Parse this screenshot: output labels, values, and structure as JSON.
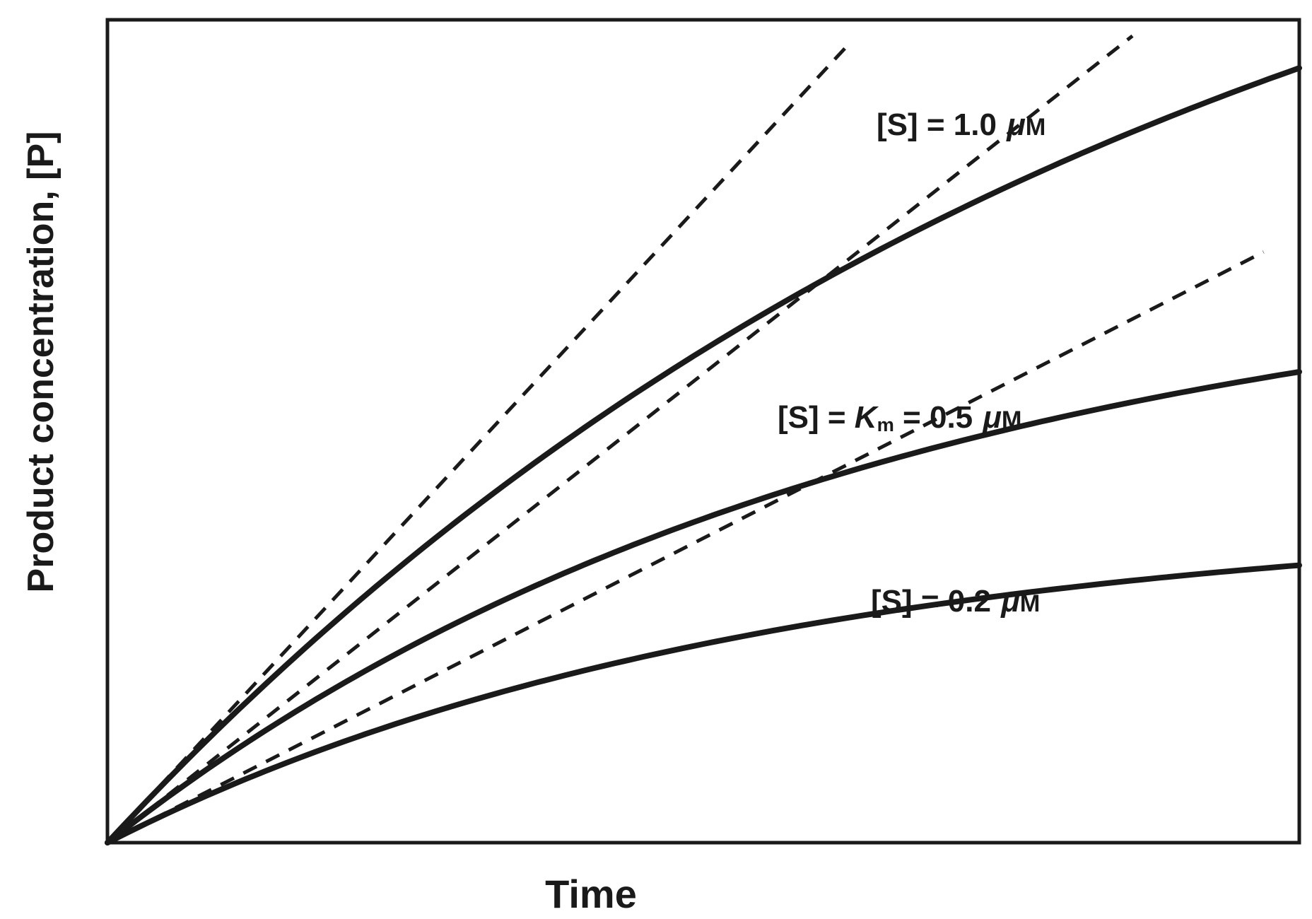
{
  "figure": {
    "title": "",
    "background": "#ffffff"
  },
  "colors": {
    "line": "#1a1a1a",
    "background": "#ffffff"
  },
  "chart_data": {
    "type": "line",
    "title": "",
    "xlabel": "Time",
    "ylabel": "Product concentration, [P]",
    "x_axis": {
      "ticks": false,
      "tick_labels": [],
      "range_normalized": [
        0,
        1
      ]
    },
    "y_axis": {
      "ticks": false,
      "tick_labels": [],
      "range_normalized": [
        0,
        1
      ]
    },
    "grid": false,
    "legend": "none (inline curve labels)",
    "x": [
      0,
      0.1,
      0.2,
      0.3,
      0.4,
      0.5,
      0.6,
      0.7,
      0.8,
      0.9,
      1.0
    ],
    "series": [
      {
        "name": "[S] = 1.0 uM",
        "line": "solid",
        "model": {
          "type": "saturating_exponential",
          "plateau": 1.4,
          "rate": 1.116
        },
        "values": [
          0,
          0.148,
          0.28,
          0.398,
          0.504,
          0.599,
          0.683,
          0.759,
          0.827,
          0.887,
          0.941
        ]
      },
      {
        "name": "[S] = Km = 0.5 uM",
        "line": "solid",
        "model": {
          "type": "saturating_exponential",
          "plateau": 0.72,
          "rate": 1.583
        },
        "values": [
          0,
          0.105,
          0.195,
          0.272,
          0.338,
          0.394,
          0.442,
          0.482,
          0.517,
          0.547,
          0.572
        ]
      },
      {
        "name": "[S] = 0.2 uM",
        "line": "solid",
        "model": {
          "type": "saturating_exponential",
          "plateau": 0.4,
          "rate": 1.85
        },
        "values": [
          0,
          0.068,
          0.124,
          0.17,
          0.209,
          0.241,
          0.268,
          0.29,
          0.309,
          0.324,
          0.337
        ]
      }
    ],
    "initial_velocity_tangents": [
      {
        "for": "[S] = 1.0 uM",
        "line": "dashed",
        "slope": 1.56,
        "x_end": 0.62
      },
      {
        "for": "[S] = Km = 0.5 uM",
        "line": "dashed",
        "slope": 1.14,
        "x_end": 0.86
      },
      {
        "for": "[S] = 0.2 uM",
        "line": "dashed",
        "slope": 0.74,
        "x_end": 0.97
      }
    ],
    "annotations": [
      {
        "name": "label-1.0uM",
        "parts": {
          "prefix": "[S] = 1.0 ",
          "mu": "μ",
          "unit": "M"
        }
      },
      {
        "name": "label-Km-0.5uM",
        "parts": {
          "prefix": "[S] = ",
          "k": "K",
          "sub": "m",
          "mid": " = 0.5 ",
          "mu": "μ",
          "unit": "M"
        }
      },
      {
        "name": "label-0.2uM",
        "parts": {
          "prefix": "[S] = 0.2 ",
          "mu": "μ",
          "unit": "M"
        }
      }
    ]
  }
}
